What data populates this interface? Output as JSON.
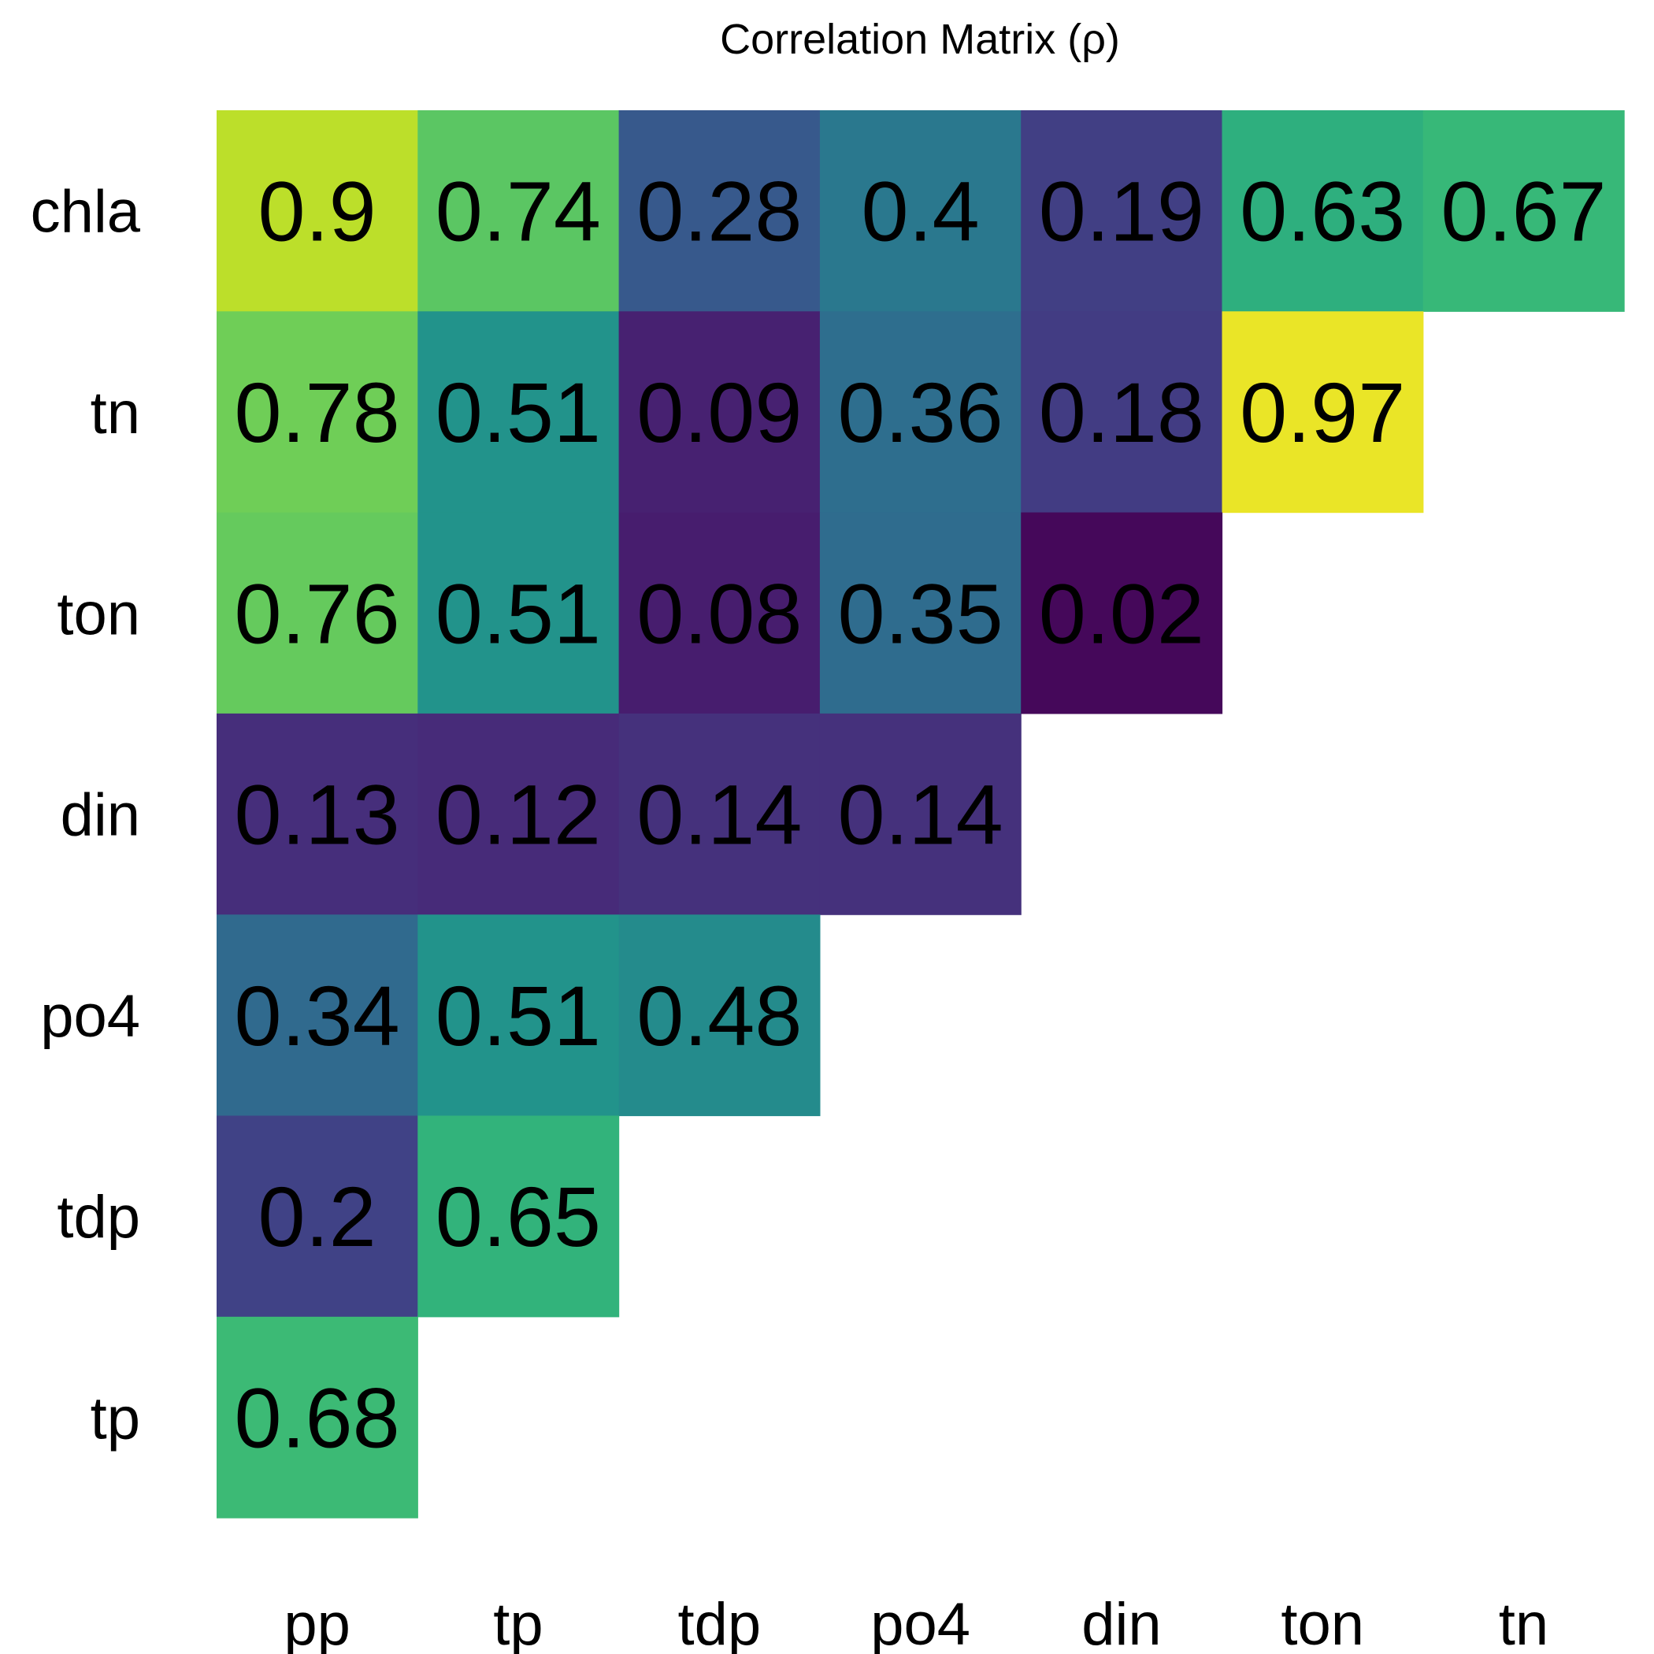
{
  "chart_data": {
    "type": "heatmap",
    "title": "Correlation Matrix (ρ)",
    "xlabel": "",
    "ylabel": "",
    "x_categories": [
      "pp",
      "tp",
      "tdp",
      "po4",
      "din",
      "ton",
      "tn"
    ],
    "y_categories": [
      "chla",
      "tn",
      "ton",
      "din",
      "po4",
      "tdp",
      "tp"
    ],
    "values": [
      [
        0.9,
        0.74,
        0.28,
        0.4,
        0.19,
        0.63,
        0.67
      ],
      [
        0.78,
        0.51,
        0.09,
        0.36,
        0.18,
        0.97,
        null
      ],
      [
        0.76,
        0.51,
        0.08,
        0.35,
        0.02,
        null,
        null
      ],
      [
        0.13,
        0.12,
        0.14,
        0.14,
        null,
        null,
        null
      ],
      [
        0.34,
        0.51,
        0.48,
        null,
        null,
        null,
        null
      ],
      [
        0.2,
        0.65,
        null,
        null,
        null,
        null,
        null
      ],
      [
        0.68,
        null,
        null,
        null,
        null,
        null,
        null
      ]
    ],
    "value_range": [
      0,
      1
    ],
    "colormap": "viridis",
    "colorscale": [
      "#440154",
      "#482878",
      "#3e4989",
      "#31688e",
      "#26828e",
      "#1f9e89",
      "#35b779",
      "#6ece58",
      "#b5de2b",
      "#fde725"
    ],
    "legend": "none",
    "grid": false
  }
}
